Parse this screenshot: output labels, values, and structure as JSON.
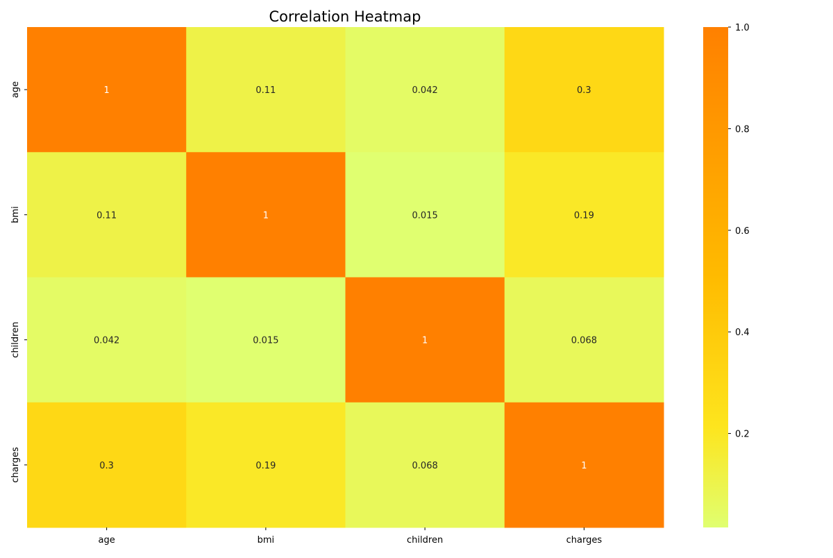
{
  "chart_data": {
    "type": "heatmap",
    "title": "Correlation Heatmap",
    "x_categories": [
      "age",
      "bmi",
      "children",
      "charges"
    ],
    "y_categories": [
      "age",
      "bmi",
      "children",
      "charges"
    ],
    "values": [
      [
        1,
        0.11,
        0.042,
        0.3
      ],
      [
        0.11,
        1,
        0.015,
        0.19
      ],
      [
        0.042,
        0.015,
        1,
        0.068
      ],
      [
        0.3,
        0.19,
        0.068,
        1
      ]
    ],
    "annotations": [
      [
        "1",
        "0.11",
        "0.042",
        "0.3"
      ],
      [
        "0.11",
        "1",
        "0.015",
        "0.19"
      ],
      [
        "0.042",
        "0.015",
        "1",
        "0.068"
      ],
      [
        "0.3",
        "0.19",
        "0.068",
        "1"
      ]
    ],
    "colorbar": {
      "min": 0.015,
      "max": 1.0,
      "ticks": [
        0.2,
        0.4,
        0.6,
        0.8,
        1.0
      ],
      "tick_labels": [
        "0.2",
        "0.4",
        "0.6",
        "0.8",
        "1.0"
      ]
    },
    "colors": {
      "low": "#e0ff70",
      "mid": "#ffbb00",
      "high": "#ff8000",
      "annotation_dark": "#262626",
      "annotation_light": "#ffffff"
    }
  }
}
